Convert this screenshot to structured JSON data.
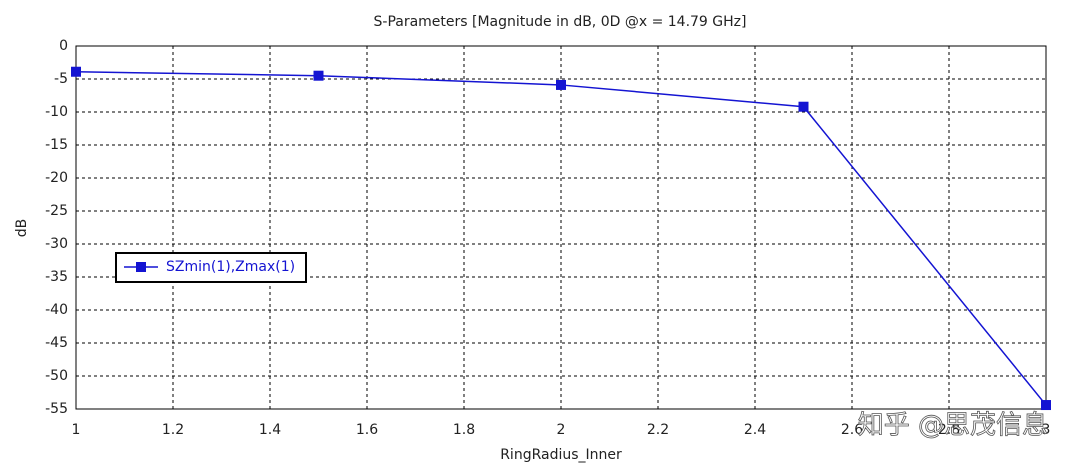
{
  "chart_data": {
    "type": "line",
    "title": "S-Parameters [Magnitude in dB, 0D @x = 14.79 GHz]",
    "x_label": "RingRadius_Inner",
    "y_label": "dB",
    "x": [
      1,
      1.5,
      2,
      2.5,
      3
    ],
    "series": [
      {
        "name": "SZmin(1),Zmax(1)",
        "color": "#1414d2",
        "values": [
          -3.9,
          -4.5,
          -5.9,
          -9.2,
          -54.4
        ]
      }
    ],
    "xlim": [
      1,
      3
    ],
    "xticks": [
      1,
      1.2,
      1.4,
      1.6,
      1.8,
      2,
      2.2,
      2.4,
      2.6,
      2.8,
      3
    ],
    "ylim": [
      -55,
      0
    ],
    "yticks": [
      0,
      -5,
      -10,
      -15,
      -20,
      -25,
      -30,
      -35,
      -40,
      -45,
      -50,
      -55
    ],
    "grid": true,
    "legend": "left",
    "watermark": "知乎 @思茂信息"
  }
}
